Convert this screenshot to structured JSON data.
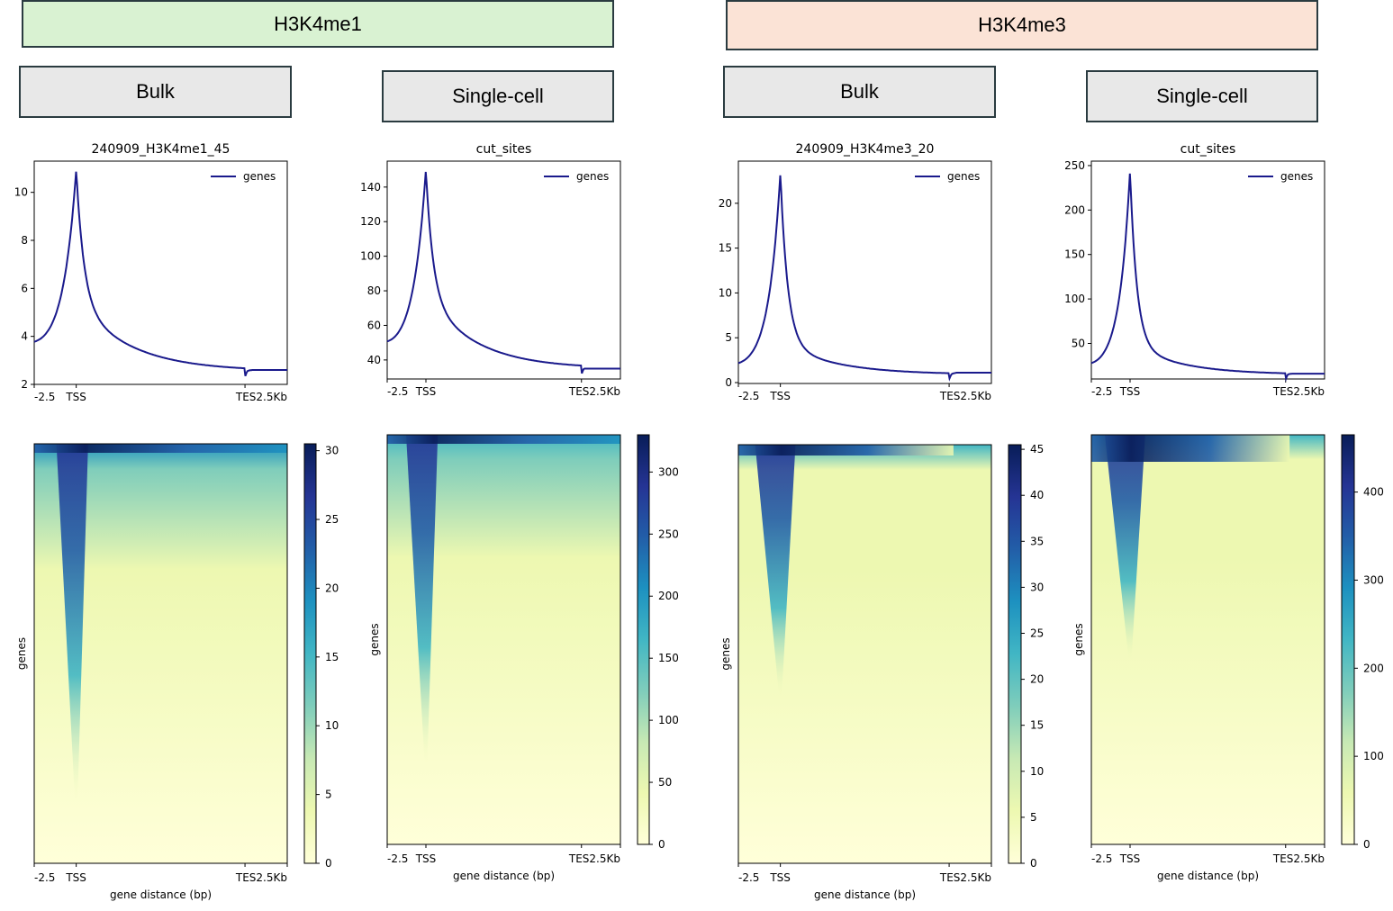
{
  "marks": [
    {
      "label": "H3K4me1",
      "color": "#d9f2d2"
    },
    {
      "label": "H3K4me3",
      "color": "#fbe3d6"
    }
  ],
  "methods": [
    "Bulk",
    "Single-cell",
    "Bulk",
    "Single-cell"
  ],
  "colormap": [
    "#ffffd9",
    "#edf8b1",
    "#c7e9b4",
    "#7fcdbb",
    "#41b6c4",
    "#1d91c0",
    "#225ea8",
    "#253494",
    "#081d58"
  ],
  "line_color": "#1a1a8c",
  "chart_data": [
    {
      "type": "line",
      "title": "240909_H3K4me1_45",
      "legend": "genes",
      "x_ticks": [
        "-2.5",
        "TSS",
        "TES2.5Kb"
      ],
      "ylim": [
        2,
        11.3
      ],
      "y_ticks": [
        2,
        4,
        6,
        8,
        10
      ],
      "profile": {
        "start": 3.65,
        "peak": 10.95,
        "body_start": 5.5,
        "body_end": 2.55,
        "end": 2.6
      },
      "heatmap": {
        "colorbar_ticks": [
          0,
          5,
          10,
          15,
          20,
          25,
          30
        ],
        "vmax": 30.5,
        "ylabel": "genes",
        "xlabel": "gene distance (bp)",
        "x_ticks": [
          "-2.5",
          "TSS",
          "TES2.5Kb"
        ]
      }
    },
    {
      "type": "line",
      "title": "cut_sites",
      "legend": "genes",
      "x_ticks": [
        "-2.5",
        "TSS",
        "TES2.5Kb"
      ],
      "ylim": [
        29,
        155
      ],
      "y_ticks": [
        40,
        60,
        80,
        100,
        120,
        140
      ],
      "profile": {
        "start": 49,
        "peak": 150,
        "body_start": 78,
        "body_end": 35,
        "end": 35
      },
      "heatmap": {
        "colorbar_ticks": [
          0,
          50,
          100,
          150,
          200,
          250,
          300
        ],
        "vmax": 330,
        "ylabel": "genes",
        "xlabel": "gene distance (bp)",
        "x_ticks": [
          "-2.5",
          "TSS",
          "TES2.5Kb"
        ]
      }
    },
    {
      "type": "line",
      "title": "240909_H3K4me3_20",
      "legend": "genes",
      "x_ticks": [
        "-2.5",
        "TSS",
        "TES2.5Kb"
      ],
      "ylim": [
        -0.1,
        24.7
      ],
      "y_ticks": [
        0,
        5,
        10,
        15,
        20
      ],
      "profile": {
        "start": 1.8,
        "peak": 23.4,
        "body_start": 4.5,
        "body_end": 0.9,
        "end": 1.1
      },
      "heatmap": {
        "colorbar_ticks": [
          0,
          5,
          10,
          15,
          20,
          25,
          30,
          35,
          40,
          45
        ],
        "vmax": 45.5,
        "ylabel": "genes",
        "xlabel": "gene distance (bp)",
        "x_ticks": [
          "-2.5",
          "TSS",
          "TES2.5Kb"
        ]
      }
    },
    {
      "type": "line",
      "title": "cut_sites",
      "legend": "genes",
      "x_ticks": [
        "-2.5",
        "TSS",
        "TES2.5Kb"
      ],
      "ylim": [
        10,
        255
      ],
      "y_ticks": [
        50,
        100,
        150,
        200,
        250
      ],
      "profile": {
        "start": 24,
        "peak": 244,
        "body_start": 50,
        "body_end": 15,
        "end": 16
      },
      "heatmap": {
        "colorbar_ticks": [
          0,
          100,
          200,
          300,
          400
        ],
        "vmax": 465,
        "ylabel": "genes",
        "xlabel": "gene distance (bp)",
        "x_ticks": [
          "-2.5",
          "TSS",
          "TES2.5Kb"
        ]
      }
    }
  ]
}
